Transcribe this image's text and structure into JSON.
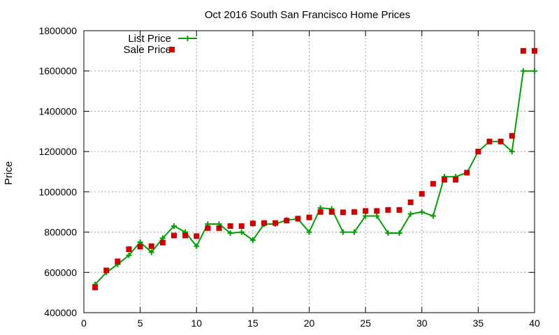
{
  "chart_data": {
    "type": "line",
    "title": "Oct 2016 South San Francisco Home Prices",
    "xlabel": "",
    "ylabel": "Price",
    "xlim": [
      0,
      40
    ],
    "ylim": [
      400000,
      1800000
    ],
    "x_ticks": [
      0,
      5,
      10,
      15,
      20,
      25,
      30,
      35,
      40
    ],
    "y_ticks": [
      400000,
      600000,
      800000,
      1000000,
      1200000,
      1400000,
      1600000,
      1800000
    ],
    "x_tick_labels": [
      "0",
      "5",
      "10",
      "15",
      "20",
      "25",
      "30",
      "35",
      "40"
    ],
    "y_tick_labels": [
      "400000",
      "600000",
      "800000",
      "1000000",
      "1200000",
      "1400000",
      "1600000",
      "1800000"
    ],
    "grid": true,
    "legend_position": "top-left",
    "x": [
      1,
      2,
      3,
      4,
      5,
      6,
      7,
      8,
      9,
      10,
      11,
      12,
      13,
      14,
      15,
      16,
      17,
      18,
      19,
      20,
      21,
      22,
      23,
      24,
      25,
      26,
      27,
      28,
      29,
      30,
      31,
      32,
      33,
      34,
      35,
      36,
      37,
      38,
      39,
      40
    ],
    "series": [
      {
        "name": "List Price",
        "style": "line+cross",
        "color": "#00a000",
        "values": [
          540000,
          600000,
          640000,
          685000,
          750000,
          700000,
          770000,
          830000,
          800000,
          730000,
          840000,
          840000,
          795000,
          800000,
          760000,
          840000,
          840000,
          860000,
          865000,
          800000,
          920000,
          915000,
          800000,
          800000,
          880000,
          880000,
          795000,
          795000,
          890000,
          900000,
          880000,
          1075000,
          1075000,
          1095000,
          1200000,
          1250000,
          1250000,
          1200000,
          1600000,
          1600000
        ]
      },
      {
        "name": "Sale Price",
        "style": "points-square",
        "color": "#cc0000",
        "values": [
          525000,
          610000,
          655000,
          715000,
          728000,
          730000,
          748000,
          783000,
          783000,
          780000,
          820000,
          820000,
          830000,
          830000,
          843000,
          845000,
          845000,
          857000,
          867000,
          873000,
          900000,
          900000,
          898000,
          900000,
          905000,
          905000,
          910000,
          910000,
          948000,
          990000,
          1040000,
          1060000,
          1060000,
          1095000,
          1200000,
          1250000,
          1250000,
          1278000,
          1700000,
          1700000
        ]
      }
    ]
  }
}
